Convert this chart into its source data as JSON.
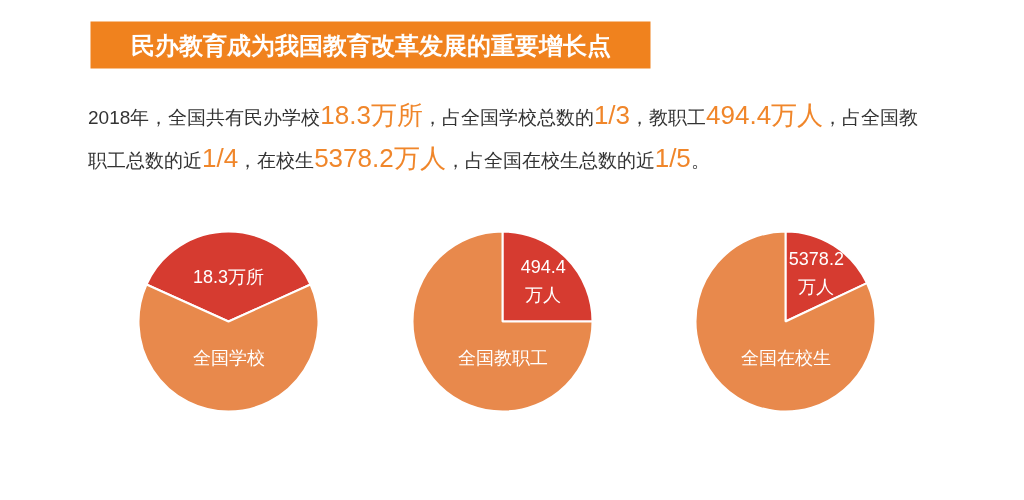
{
  "chart_data": [
    {
      "type": "pie",
      "title": "民办教育成为我国教育改革发展的重要增长点",
      "subtitle": "2018年，全国共有民办学校18.3万所，占全国学校总数的1/3，教职工494.4万人，占全国教职工总数的近1/4，在校生5378.2万人，占全国在校生总数的近1/5。",
      "categories": [
        "18.3万所",
        "全国学校"
      ],
      "values": [
        36.5,
        63.5
      ],
      "colors": [
        "#d63b30",
        "#e8894c"
      ]
    },
    {
      "type": "pie",
      "categories": [
        "494.4\n万人",
        "全国教职工"
      ],
      "values": [
        25,
        75
      ],
      "colors": [
        "#d63b30",
        "#e8894c"
      ]
    },
    {
      "type": "pie",
      "categories": [
        "5378.2\n万人",
        "全国在校生"
      ],
      "values": [
        18,
        82
      ],
      "colors": [
        "#d63b30",
        "#e8894c"
      ]
    }
  ]
}
